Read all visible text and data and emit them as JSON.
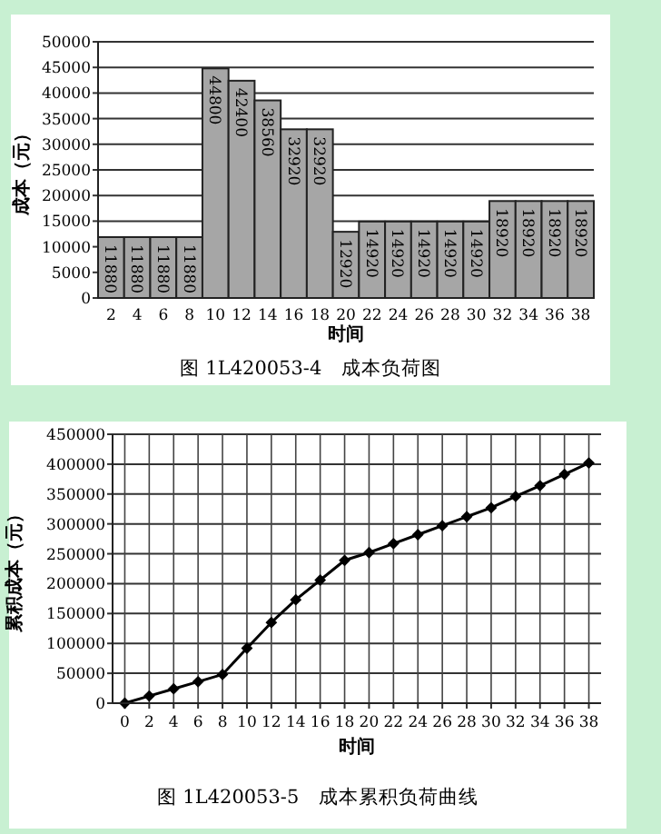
{
  "chart_data": [
    {
      "type": "bar",
      "title": "图 1L420053-4　成本负荷图",
      "xlabel": "时间",
      "ylabel": "成本（元）",
      "categories": [
        "2",
        "4",
        "6",
        "8",
        "10",
        "12",
        "14",
        "16",
        "18",
        "20",
        "22",
        "24",
        "26",
        "28",
        "30",
        "32",
        "34",
        "36",
        "38"
      ],
      "values": [
        11880,
        11880,
        11880,
        11880,
        44800,
        42400,
        38560,
        32920,
        32920,
        12920,
        14920,
        14920,
        14920,
        14920,
        14920,
        18920,
        18920,
        18920,
        18920
      ],
      "color": "#a6a6a6",
      "ylim": [
        0,
        50000
      ],
      "yticks": [
        0,
        5000,
        10000,
        15000,
        20000,
        25000,
        30000,
        35000,
        40000,
        45000,
        50000
      ],
      "grid": "y",
      "data_labels": true
    },
    {
      "type": "line",
      "title": "图 1L420053-5　成本累积负荷曲线",
      "xlabel": "时间",
      "ylabel": "累积成本（元）",
      "x": [
        0,
        2,
        4,
        6,
        8,
        10,
        12,
        14,
        16,
        18,
        20,
        22,
        24,
        26,
        28,
        30,
        32,
        34,
        36,
        38
      ],
      "values": [
        0,
        12000,
        24000,
        36000,
        48000,
        92000,
        135000,
        173000,
        206000,
        239000,
        252000,
        267000,
        282000,
        297000,
        312000,
        327000,
        346000,
        364000,
        383000,
        402000
      ],
      "color": "#000000",
      "marker": "diamond",
      "xlim": [
        -1,
        39
      ],
      "ylim": [
        0,
        450000
      ],
      "xticks": [
        0,
        2,
        4,
        6,
        8,
        10,
        12,
        14,
        16,
        18,
        20,
        22,
        24,
        26,
        28,
        30,
        32,
        34,
        36,
        38
      ],
      "yticks": [
        0,
        50000,
        100000,
        150000,
        200000,
        250000,
        300000,
        350000,
        400000,
        450000
      ],
      "grid": true
    }
  ]
}
